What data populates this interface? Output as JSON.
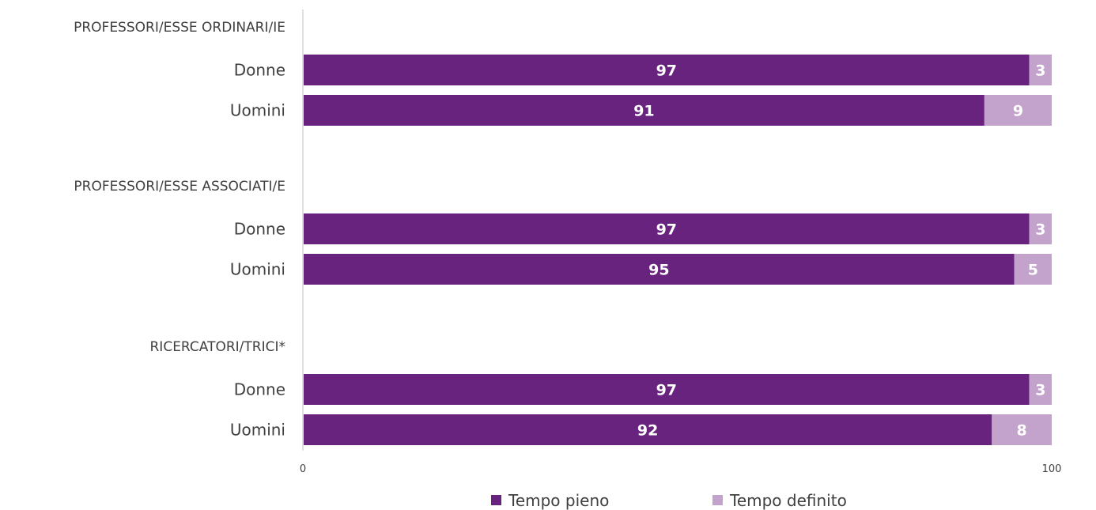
{
  "chart_data": {
    "type": "bar",
    "orientation": "horizontal",
    "stacked": true,
    "xlim": [
      0,
      100
    ],
    "x_ticks": [
      "0",
      "100"
    ],
    "grid": false,
    "legend_position": "bottom",
    "series": [
      {
        "name": "Tempo pieno",
        "color": "#68237f"
      },
      {
        "name": "Tempo definito",
        "color": "#c3a2cc"
      }
    ],
    "groups": [
      {
        "label": "PROFESSORI/ESSE ORDINARI/IE",
        "rows": [
          {
            "label": "Donne",
            "values": [
              97,
              3
            ]
          },
          {
            "label": "Uomini",
            "values": [
              91,
              9
            ]
          }
        ]
      },
      {
        "label": "PROFESSORI/ESSE ASSOCIATI/E",
        "rows": [
          {
            "label": "Donne",
            "values": [
              97,
              3
            ]
          },
          {
            "label": "Uomini",
            "values": [
              95,
              5
            ]
          }
        ]
      },
      {
        "label": "RICERCATORI/TRICI*",
        "rows": [
          {
            "label": "Donne",
            "values": [
              97,
              3
            ]
          },
          {
            "label": "Uomini",
            "values": [
              92,
              8
            ]
          }
        ]
      }
    ]
  }
}
